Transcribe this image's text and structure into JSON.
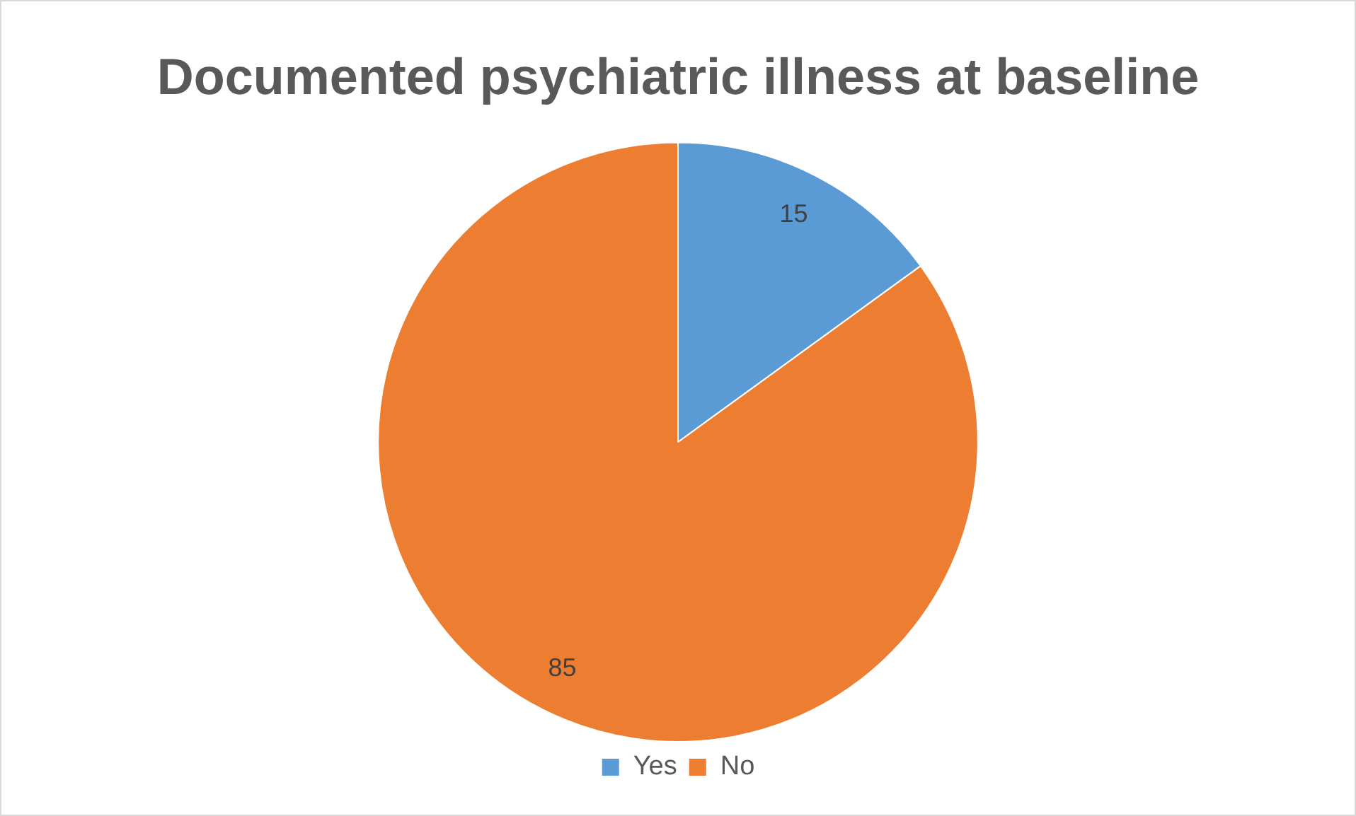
{
  "chart_data": {
    "type": "pie",
    "title": "Documented psychiatric illness at baseline",
    "categories": [
      "Yes",
      "No"
    ],
    "values": [
      15,
      85
    ],
    "colors": [
      "#5b9bd5",
      "#ed7d31"
    ],
    "data_labels": true,
    "legend": "bottom"
  }
}
